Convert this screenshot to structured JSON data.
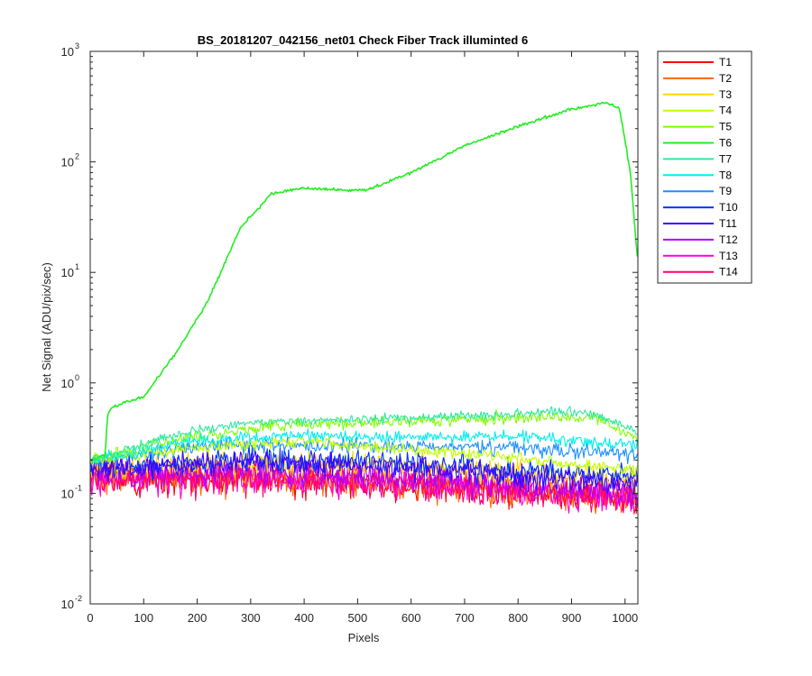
{
  "chart_data": {
    "type": "line",
    "title": "BS_20181207_042156_net01    Check Fiber      Track illuminted 6",
    "xlabel": "Pixels",
    "ylabel": "Net Signal (ADU/pix/sec)",
    "xlim": [
      0,
      1024
    ],
    "ylim": [
      0.01,
      1000
    ],
    "yscale": "log",
    "x_ticks": [
      "0",
      "100",
      "200",
      "300",
      "400",
      "500",
      "600",
      "700",
      "800",
      "900",
      "1000"
    ],
    "y_ticks": [
      {
        "base": "10",
        "exp": "-2"
      },
      {
        "base": "10",
        "exp": "-1"
      },
      {
        "base": "10",
        "exp": "0"
      },
      {
        "base": "10",
        "exp": "1"
      },
      {
        "base": "10",
        "exp": "2"
      },
      {
        "base": "10",
        "exp": "3"
      }
    ],
    "grid": false,
    "legend_position": "outside-top-right",
    "series": [
      {
        "name": "T1",
        "color": "#FF0000",
        "noise": 0.13,
        "profile": [
          [
            0,
            0.14
          ],
          [
            500,
            0.13
          ],
          [
            1024,
            0.09
          ]
        ]
      },
      {
        "name": "T2",
        "color": "#FF6A00",
        "noise": 0.13,
        "profile": [
          [
            0,
            0.14
          ],
          [
            500,
            0.13
          ],
          [
            1024,
            0.09
          ]
        ]
      },
      {
        "name": "T3",
        "color": "#FFD400",
        "noise": 0.1,
        "profile": [
          [
            0,
            0.16
          ],
          [
            300,
            0.19
          ],
          [
            600,
            0.18
          ],
          [
            1024,
            0.13
          ]
        ]
      },
      {
        "name": "T4",
        "color": "#BFFF00",
        "noise": 0.05,
        "profile": [
          [
            0,
            0.2
          ],
          [
            200,
            0.26
          ],
          [
            400,
            0.3
          ],
          [
            600,
            0.25
          ],
          [
            800,
            0.21
          ],
          [
            1024,
            0.16
          ]
        ]
      },
      {
        "name": "T5",
        "color": "#7FFF00",
        "noise": 0.05,
        "profile": [
          [
            0,
            0.2
          ],
          [
            150,
            0.3
          ],
          [
            350,
            0.42
          ],
          [
            550,
            0.44
          ],
          [
            700,
            0.47
          ],
          [
            850,
            0.5
          ],
          [
            950,
            0.48
          ],
          [
            1024,
            0.3
          ]
        ]
      },
      {
        "name": "T6",
        "color": "#22EE22",
        "noise": 0.012,
        "profile": [
          [
            0,
            0.2
          ],
          [
            28,
            0.22
          ],
          [
            32,
            0.5
          ],
          [
            40,
            0.6
          ],
          [
            100,
            0.75
          ],
          [
            165,
            2.0
          ],
          [
            220,
            5.5
          ],
          [
            280,
            25
          ],
          [
            340,
            52
          ],
          [
            400,
            58
          ],
          [
            480,
            55
          ],
          [
            520,
            56
          ],
          [
            600,
            80
          ],
          [
            700,
            140
          ],
          [
            800,
            210
          ],
          [
            900,
            300
          ],
          [
            965,
            345
          ],
          [
            990,
            300
          ],
          [
            1010,
            80
          ],
          [
            1024,
            12
          ]
        ]
      },
      {
        "name": "T7",
        "color": "#2EE8A0",
        "noise": 0.04,
        "profile": [
          [
            0,
            0.2
          ],
          [
            150,
            0.33
          ],
          [
            300,
            0.44
          ],
          [
            500,
            0.47
          ],
          [
            700,
            0.5
          ],
          [
            880,
            0.55
          ],
          [
            950,
            0.52
          ],
          [
            1024,
            0.35
          ]
        ]
      },
      {
        "name": "T8",
        "color": "#00EEEE",
        "noise": 0.05,
        "profile": [
          [
            0,
            0.2
          ],
          [
            200,
            0.3
          ],
          [
            400,
            0.33
          ],
          [
            600,
            0.32
          ],
          [
            800,
            0.33
          ],
          [
            1024,
            0.27
          ]
        ]
      },
      {
        "name": "T9",
        "color": "#1E90FF",
        "noise": 0.06,
        "profile": [
          [
            0,
            0.19
          ],
          [
            200,
            0.27
          ],
          [
            500,
            0.27
          ],
          [
            800,
            0.26
          ],
          [
            1024,
            0.22
          ]
        ]
      },
      {
        "name": "T10",
        "color": "#0033FF",
        "noise": 0.1,
        "profile": [
          [
            0,
            0.17
          ],
          [
            300,
            0.2
          ],
          [
            600,
            0.18
          ],
          [
            1024,
            0.14
          ]
        ]
      },
      {
        "name": "T11",
        "color": "#4000FF",
        "noise": 0.1,
        "profile": [
          [
            0,
            0.17
          ],
          [
            300,
            0.19
          ],
          [
            600,
            0.17
          ],
          [
            1024,
            0.12
          ]
        ]
      },
      {
        "name": "T12",
        "color": "#B000FF",
        "noise": 0.12,
        "profile": [
          [
            0,
            0.15
          ],
          [
            300,
            0.16
          ],
          [
            600,
            0.14
          ],
          [
            1024,
            0.1
          ]
        ]
      },
      {
        "name": "T13",
        "color": "#FF00E0",
        "noise": 0.13,
        "profile": [
          [
            0,
            0.14
          ],
          [
            500,
            0.13
          ],
          [
            1024,
            0.09
          ]
        ]
      },
      {
        "name": "T14",
        "color": "#FF0066",
        "noise": 0.13,
        "profile": [
          [
            0,
            0.14
          ],
          [
            500,
            0.13
          ],
          [
            1024,
            0.09
          ]
        ]
      }
    ]
  }
}
